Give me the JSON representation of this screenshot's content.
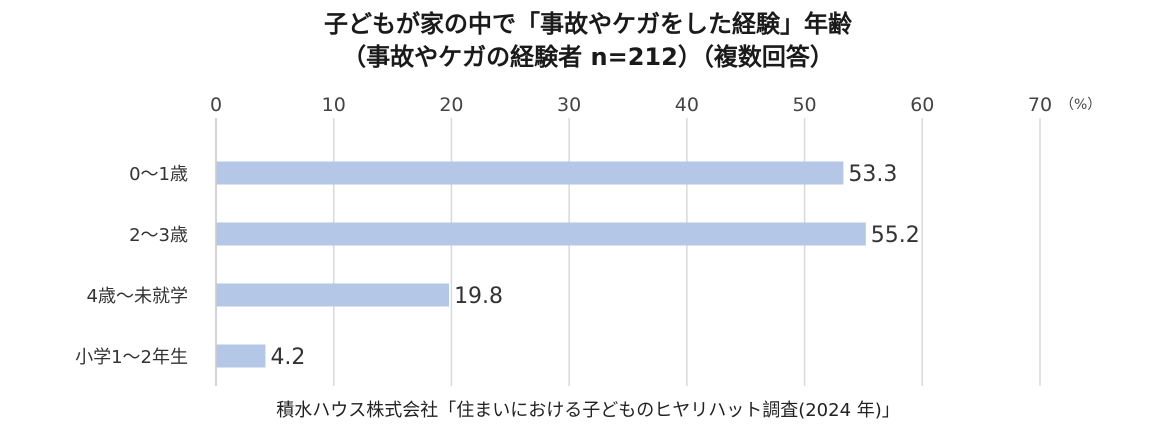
{
  "chart_data": {
    "type": "bar",
    "orientation": "horizontal",
    "title": "子どもが家の中で「事故やケガをした経験」年齢",
    "subtitle": "（事故やケガの経験者 n=212）（複数回答）",
    "unit": "（%）",
    "categories": [
      "0～1歳",
      "2～3歳",
      "4歳～未就学",
      "小学1～2年生"
    ],
    "values": [
      53.3,
      55.2,
      19.8,
      4.2
    ],
    "value_labels": [
      "53.3",
      "55.2",
      "19.8",
      "4.2"
    ],
    "xlim": [
      0,
      70
    ],
    "xticks": [
      "0",
      "10",
      "20",
      "30",
      "40",
      "50",
      "60",
      "70"
    ],
    "xlabel": "",
    "ylabel": "",
    "grid": true,
    "axis_position": "top",
    "bar_color": "#b4c7e7",
    "grid_color": "#d9d9d9"
  },
  "source": "積水ハウス株式会社「住まいにおける子どものヒヤリハット調査(2024 年)」"
}
